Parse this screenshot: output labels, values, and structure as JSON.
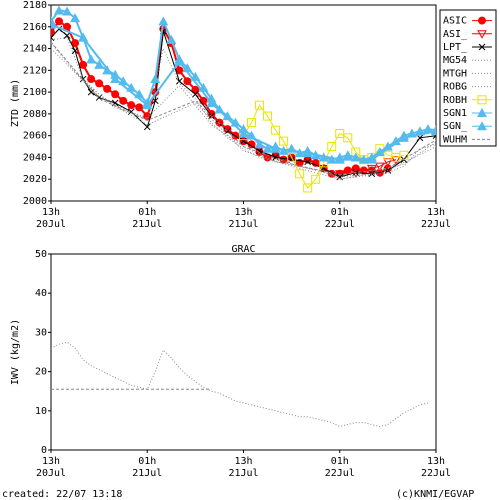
{
  "chart_data": [
    {
      "type": "line",
      "title": "",
      "ylabel": "ZTD (mm)",
      "xlabel": "",
      "ylim": [
        2000,
        2180
      ],
      "yticks": [
        2000,
        2020,
        2040,
        2060,
        2080,
        2100,
        2120,
        2140,
        2160,
        2180
      ],
      "xlim_hours": [
        0,
        48
      ],
      "xticks": [
        {
          "hour": 0,
          "top": "13h",
          "bottom": "20Jul"
        },
        {
          "hour": 12,
          "top": "01h",
          "bottom": "21Jul"
        },
        {
          "hour": 24,
          "top": "13h",
          "bottom": "21Jul"
        },
        {
          "hour": 36,
          "top": "01h",
          "bottom": "22Jul"
        },
        {
          "hour": 48,
          "top": "13h",
          "bottom": "22Jul"
        }
      ],
      "grid": false,
      "legend_position": "right",
      "series": [
        {
          "name": "ASIC",
          "color": "#ff0000",
          "marker": "circle-filled",
          "x": [
            0,
            1,
            2,
            3,
            4,
            5,
            6,
            7,
            8,
            9,
            10,
            11,
            12,
            13,
            14,
            15,
            16,
            17,
            18,
            19,
            20,
            21,
            22,
            23,
            24,
            25,
            26,
            27,
            28,
            29,
            30,
            31,
            32,
            33,
            34,
            35,
            36,
            37,
            38,
            39,
            40,
            41,
            42
          ],
          "y": [
            2155,
            2165,
            2160,
            2145,
            2125,
            2112,
            2108,
            2103,
            2098,
            2092,
            2088,
            2086,
            2078,
            2100,
            2158,
            2145,
            2120,
            2110,
            2102,
            2092,
            2080,
            2072,
            2066,
            2060,
            2055,
            2052,
            2045,
            2040,
            2042,
            2038,
            2040,
            2035,
            2038,
            2035,
            2030,
            2025,
            2025,
            2028,
            2030,
            2028,
            2028,
            2026,
            2030
          ]
        },
        {
          "name": "ASI_",
          "color": "#ff0000",
          "marker": "triangle-down-open",
          "x": [
            36,
            38,
            40,
            41,
            42,
            43
          ],
          "y": [
            2025,
            2026,
            2030,
            2032,
            2036,
            2038
          ]
        },
        {
          "name": "LPT_",
          "color": "#000000",
          "marker": "x",
          "x": [
            0,
            1,
            2,
            3,
            4,
            5,
            6,
            8,
            10,
            12,
            13,
            14,
            16,
            18,
            20,
            22,
            24,
            26,
            28,
            30,
            32,
            34,
            36,
            38,
            40,
            42,
            44,
            46,
            48
          ],
          "y": [
            2150,
            2158,
            2152,
            2138,
            2112,
            2100,
            2095,
            2090,
            2082,
            2068,
            2092,
            2156,
            2110,
            2098,
            2078,
            2064,
            2055,
            2046,
            2040,
            2038,
            2036,
            2030,
            2022,
            2026,
            2025,
            2028,
            2038,
            2058,
            2060
          ]
        },
        {
          "name": "MG54",
          "color": "#888888",
          "marker": "dotted",
          "x": [
            0,
            2,
            4,
            6,
            8,
            10,
            12,
            14,
            16,
            18,
            20,
            22,
            24,
            26,
            28,
            30,
            32,
            34,
            36,
            38,
            40,
            42,
            44,
            46,
            48
          ],
          "y": [
            2148,
            2150,
            2112,
            2098,
            2088,
            2082,
            2075,
            2140,
            2108,
            2094,
            2072,
            2058,
            2048,
            2040,
            2036,
            2034,
            2030,
            2028,
            2020,
            2022,
            2024,
            2026,
            2032,
            2048,
            2052
          ]
        },
        {
          "name": "MTGH",
          "color": "#888888",
          "marker": "dotted",
          "x": [
            0,
            4,
            8,
            12,
            16,
            20,
            24,
            28,
            32,
            36,
            40,
            44,
            48
          ],
          "y": [
            2145,
            2110,
            2086,
            2076,
            2106,
            2070,
            2050,
            2036,
            2030,
            2022,
            2025,
            2034,
            2054
          ]
        },
        {
          "name": "ROBG",
          "color": "#888888",
          "marker": "dotted",
          "x": [
            0,
            6,
            12,
            18,
            24,
            30,
            36,
            42,
            48
          ],
          "y": [
            2140,
            2096,
            2070,
            2090,
            2046,
            2032,
            2020,
            2028,
            2050
          ]
        },
        {
          "name": "ROBH",
          "color": "#e6e600",
          "marker": "square-open",
          "x": [
            24,
            25,
            26,
            27,
            28,
            29,
            30,
            31,
            32,
            33,
            34,
            35,
            36,
            37,
            38,
            39,
            40,
            41,
            42,
            43,
            44
          ],
          "y": [
            2060,
            2072,
            2088,
            2078,
            2065,
            2055,
            2040,
            2025,
            2012,
            2020,
            2035,
            2050,
            2062,
            2058,
            2045,
            2038,
            2040,
            2048,
            2042,
            2040,
            2042
          ]
        },
        {
          "name": "SGN1",
          "color": "#55bbee",
          "marker": "triangle-filled",
          "x": [
            0,
            1,
            2,
            3,
            4,
            5,
            6,
            7,
            8,
            9,
            10,
            11,
            12,
            13,
            14,
            15,
            16,
            17,
            18,
            19,
            20,
            21,
            22,
            23,
            24,
            25,
            26,
            27,
            28,
            29,
            30,
            31,
            32,
            33,
            34,
            35,
            36,
            37,
            38,
            39,
            40,
            41,
            42,
            43,
            44,
            45,
            46,
            47,
            48
          ],
          "y": [
            2165,
            2175,
            2174,
            2168,
            2150,
            2130,
            2125,
            2120,
            2116,
            2110,
            2104,
            2098,
            2090,
            2112,
            2165,
            2148,
            2130,
            2122,
            2114,
            2104,
            2094,
            2084,
            2078,
            2072,
            2066,
            2060,
            2052,
            2048,
            2050,
            2046,
            2048,
            2044,
            2046,
            2042,
            2040,
            2038,
            2040,
            2042,
            2040,
            2038,
            2040,
            2045,
            2050,
            2055,
            2060,
            2062,
            2064,
            2066,
            2065
          ]
        },
        {
          "name": "SGN_",
          "color": "#55bbee",
          "marker": "triangle-filled",
          "x": [
            0,
            4,
            8,
            12,
            16,
            20,
            24,
            28,
            32,
            36,
            40,
            44,
            48
          ],
          "y": [
            2162,
            2150,
            2112,
            2088,
            2128,
            2090,
            2062,
            2048,
            2044,
            2038,
            2038,
            2058,
            2064
          ]
        },
        {
          "name": "WUHM",
          "color": "#888888",
          "marker": "dashed",
          "x": [
            0,
            6,
            12,
            18,
            24,
            30,
            36,
            42,
            48
          ],
          "y": [
            2146,
            2094,
            2074,
            2092,
            2050,
            2034,
            2024,
            2030,
            2056
          ]
        }
      ]
    },
    {
      "type": "line",
      "title": "GRAC",
      "ylabel": "IWV (kg/m2)",
      "xlabel": "",
      "ylim": [
        0,
        50
      ],
      "yticks": [
        0,
        10,
        20,
        30,
        40,
        50
      ],
      "xlim_hours": [
        0,
        48
      ],
      "xticks": [
        {
          "hour": 0,
          "top": "13h",
          "bottom": "20Jul"
        },
        {
          "hour": 12,
          "top": "01h",
          "bottom": "21Jul"
        },
        {
          "hour": 24,
          "top": "13h",
          "bottom": "21Jul"
        },
        {
          "hour": 36,
          "top": "01h",
          "bottom": "22Jul"
        },
        {
          "hour": 48,
          "top": "13h",
          "bottom": "22Jul"
        }
      ],
      "grid": false,
      "series": [
        {
          "name": "",
          "color": "#888888",
          "marker": "dotted",
          "x": [
            0,
            1,
            2,
            3,
            4,
            5,
            6,
            7,
            8,
            9,
            10,
            11,
            12,
            13,
            14,
            15,
            16,
            17,
            18,
            19,
            20,
            21,
            22,
            23,
            24,
            25,
            26,
            27,
            28,
            29,
            30,
            31,
            32,
            33,
            34,
            35,
            36,
            37,
            38,
            39,
            40,
            41,
            42,
            43,
            44,
            45,
            46,
            47
          ],
          "y": [
            26,
            27,
            27.5,
            26,
            23,
            21.5,
            20.5,
            19.5,
            18.5,
            17.5,
            16.5,
            16,
            15.5,
            20,
            25.5,
            23.5,
            21,
            19,
            17.5,
            16,
            15,
            14.5,
            13.5,
            12.5,
            12,
            11.5,
            11,
            10.5,
            10,
            9.5,
            9,
            8.5,
            8.5,
            8,
            7.5,
            7,
            6,
            6.5,
            7,
            7,
            6.5,
            6,
            6.5,
            8,
            9.5,
            10.5,
            11.5,
            12
          ]
        },
        {
          "name": "",
          "color": "#888888",
          "marker": "dashed",
          "x": [
            0,
            20
          ],
          "y": [
            15.5,
            15.5
          ]
        }
      ]
    }
  ],
  "footer": {
    "created": "created: 22/07 13:18",
    "credit": "(c)KNMI/EGVAP"
  }
}
